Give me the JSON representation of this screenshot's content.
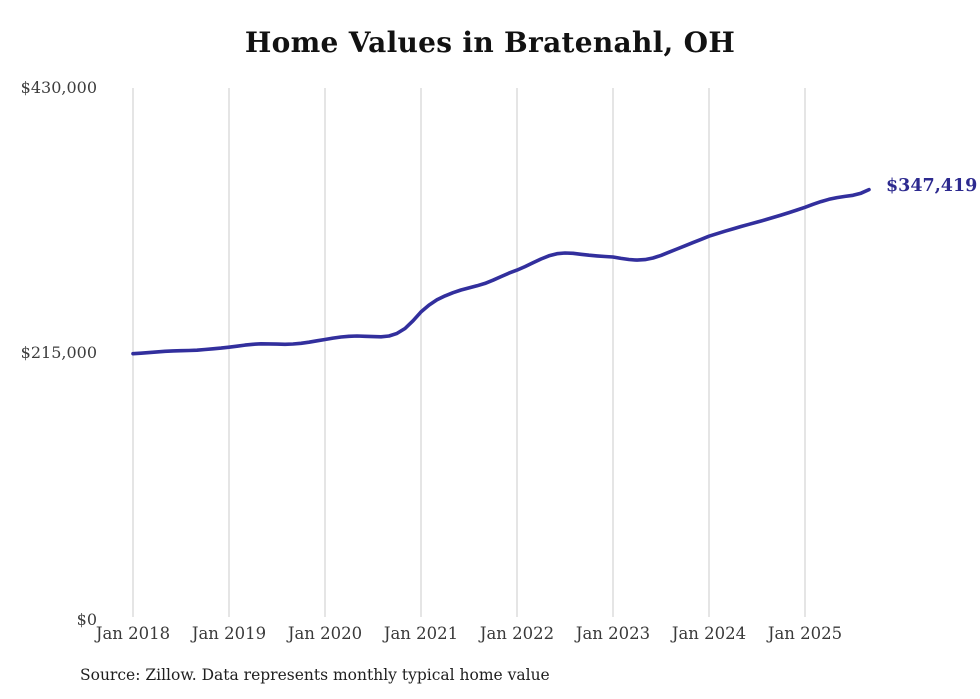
{
  "title": "Home Values in Bratenahl, OH",
  "source_note": "Source: Zillow. Data represents monthly typical home value",
  "end_label": "$347,419",
  "colors": {
    "line": "#322f9d",
    "end_label_text": "#2d2a8f",
    "grid": "#cbcbcb",
    "axis_text": "#3d3d3d",
    "title_text": "#121212",
    "background": "#ffffff"
  },
  "chart_data": {
    "type": "line",
    "title": "Home Values in Bratenahl, OH",
    "xlabel": "",
    "ylabel": "",
    "x_cadence": "monthly",
    "x_first_month": "Jan 2018",
    "x_last_month": "Sep 2025",
    "ylim": [
      0,
      430000
    ],
    "grid": "vertical",
    "legend_position": "none",
    "x_ticks": [
      {
        "label": "Jan 2018",
        "month_index": 0
      },
      {
        "label": "Jan 2019",
        "month_index": 12
      },
      {
        "label": "Jan 2020",
        "month_index": 24
      },
      {
        "label": "Jan 2021",
        "month_index": 36
      },
      {
        "label": "Jan 2022",
        "month_index": 48
      },
      {
        "label": "Jan 2023",
        "month_index": 60
      },
      {
        "label": "Jan 2024",
        "month_index": 72
      },
      {
        "label": "Jan 2025",
        "month_index": 84
      }
    ],
    "y_ticks": [
      {
        "label": "$0",
        "value": 0
      },
      {
        "label": "$215,000",
        "value": 215000
      },
      {
        "label": "$430,000",
        "value": 430000
      }
    ],
    "series": [
      {
        "name": "Typical home value ($)",
        "values": [
          214000,
          214400,
          214900,
          215500,
          216000,
          216300,
          216500,
          216600,
          216900,
          217400,
          218000,
          218600,
          219300,
          220100,
          221000,
          221700,
          222100,
          222000,
          221800,
          221700,
          221900,
          222500,
          223400,
          224500,
          225600,
          226700,
          227600,
          228200,
          228400,
          228200,
          227900,
          227800,
          228400,
          230500,
          234500,
          240800,
          248000,
          253500,
          257800,
          261000,
          263600,
          265800,
          267500,
          269200,
          271200,
          273800,
          276700,
          279500,
          282000,
          284800,
          287900,
          291000,
          293600,
          295300,
          295900,
          295600,
          294800,
          294100,
          293500,
          293000,
          292600,
          291500,
          290600,
          290100,
          290500,
          291800,
          293900,
          296500,
          299100,
          301700,
          304300,
          306900,
          309500,
          311600,
          313600,
          315500,
          317400,
          319200,
          321000,
          322800,
          324700,
          326700,
          328700,
          330800,
          333000,
          335500,
          337700,
          339500,
          340900,
          341900,
          342800,
          344500,
          347419
        ]
      }
    ],
    "end_annotation": {
      "text": "$347,419",
      "value": 347419,
      "month": "Sep 2025"
    }
  }
}
